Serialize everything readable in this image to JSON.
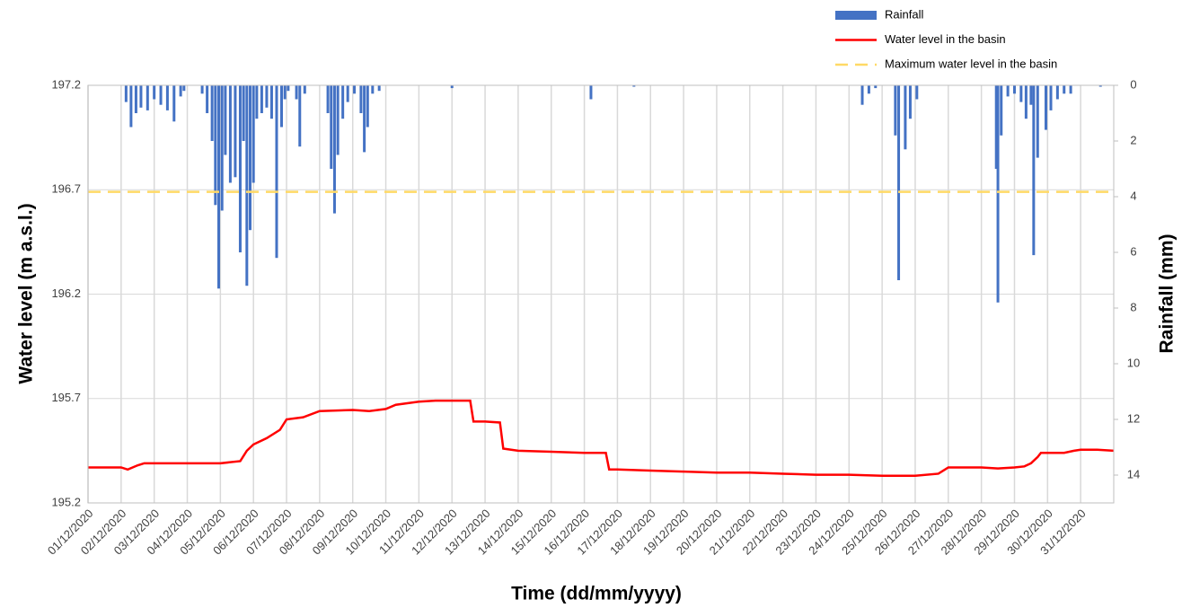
{
  "chart_data": {
    "type": "dual-axis",
    "x_label": "Time (dd/mm/yyyy)",
    "y_label": "Water level (m a.s.l.)",
    "y2_label": "Rainfall (mm)",
    "xlim": [
      0,
      31
    ],
    "xticks": [
      {
        "value": 0,
        "label": "01/12/2020"
      },
      {
        "value": 1,
        "label": "02/12/2020"
      },
      {
        "value": 2,
        "label": "03/12/2020"
      },
      {
        "value": 3,
        "label": "04/12/2020"
      },
      {
        "value": 4,
        "label": "05/12/2020"
      },
      {
        "value": 5,
        "label": "06/12/2020"
      },
      {
        "value": 6,
        "label": "07/12/2020"
      },
      {
        "value": 7,
        "label": "08/12/2020"
      },
      {
        "value": 8,
        "label": "09/12/2020"
      },
      {
        "value": 9,
        "label": "10/12/2020"
      },
      {
        "value": 10,
        "label": "11/12/2020"
      },
      {
        "value": 11,
        "label": "12/12/2020"
      },
      {
        "value": 12,
        "label": "13/12/2020"
      },
      {
        "value": 13,
        "label": "14/12/2020"
      },
      {
        "value": 14,
        "label": "15/12/2020"
      },
      {
        "value": 15,
        "label": "16/12/2020"
      },
      {
        "value": 16,
        "label": "17/12/2020"
      },
      {
        "value": 17,
        "label": "18/12/2020"
      },
      {
        "value": 18,
        "label": "19/12/2020"
      },
      {
        "value": 19,
        "label": "20/12/2020"
      },
      {
        "value": 20,
        "label": "21/12/2020"
      },
      {
        "value": 21,
        "label": "22/12/2020"
      },
      {
        "value": 22,
        "label": "23/12/2020"
      },
      {
        "value": 23,
        "label": "24/12/2020"
      },
      {
        "value": 24,
        "label": "25/12/2020"
      },
      {
        "value": 25,
        "label": "26/12/2020"
      },
      {
        "value": 26,
        "label": "27/12/2020"
      },
      {
        "value": 27,
        "label": "28/12/2020"
      },
      {
        "value": 28,
        "label": "29/12/2020"
      },
      {
        "value": 29,
        "label": "30/12/2020"
      },
      {
        "value": 30,
        "label": "31/12/2020"
      }
    ],
    "ylim": [
      195.2,
      197.2
    ],
    "yticks": [
      195.2,
      195.7,
      196.2,
      196.7,
      197.2
    ],
    "y2lim": [
      0,
      15
    ],
    "y2ticks": [
      0,
      2,
      4,
      6,
      8,
      10,
      12,
      14
    ],
    "y2_inverted": true,
    "grid": true,
    "legend": "top-right",
    "series": [
      {
        "name": "Rainfall",
        "type": "bar",
        "axis": "y2",
        "color": "#4472c4",
        "x": [
          1.15,
          1.3,
          1.45,
          1.6,
          1.8,
          2.0,
          2.2,
          2.4,
          2.6,
          2.8,
          2.9,
          3.45,
          3.6,
          3.75,
          3.85,
          3.95,
          4.05,
          4.15,
          4.3,
          4.45,
          4.6,
          4.7,
          4.8,
          4.9,
          5.0,
          5.1,
          5.25,
          5.4,
          5.55,
          5.7,
          5.85,
          5.95,
          6.05,
          6.3,
          6.4,
          6.55,
          7.25,
          7.35,
          7.45,
          7.55,
          7.7,
          7.85,
          8.05,
          8.25,
          8.35,
          8.45,
          8.6,
          8.8,
          11.0,
          15.2,
          16.5,
          23.4,
          23.6,
          23.8,
          24.4,
          24.5,
          24.7,
          24.85,
          25.05,
          27.45,
          27.5,
          27.6,
          27.8,
          28.0,
          28.2,
          28.35,
          28.5,
          28.58,
          28.7,
          28.95,
          29.1,
          29.3,
          29.5,
          29.7,
          30.6
        ],
        "values": [
          0.6,
          1.5,
          1.0,
          0.8,
          0.9,
          0.5,
          0.7,
          0.9,
          1.3,
          0.4,
          0.2,
          0.3,
          1.0,
          2.0,
          4.3,
          7.3,
          4.5,
          2.5,
          3.5,
          3.3,
          6.0,
          2.0,
          7.2,
          5.2,
          3.5,
          1.2,
          1.0,
          0.8,
          1.2,
          6.2,
          1.5,
          0.5,
          0.2,
          0.5,
          2.2,
          0.3,
          1.0,
          3.0,
          4.6,
          2.5,
          1.2,
          0.6,
          0.3,
          1.0,
          2.4,
          1.5,
          0.3,
          0.2,
          0.1,
          0.5,
          0.05,
          0.7,
          0.3,
          0.1,
          1.8,
          7.0,
          2.3,
          1.2,
          0.5,
          3.0,
          7.8,
          1.8,
          0.4,
          0.3,
          0.6,
          1.2,
          0.7,
          6.1,
          2.6,
          1.6,
          0.9,
          0.5,
          0.3,
          0.3,
          0.05
        ]
      },
      {
        "name": "Water level in the basin",
        "type": "line",
        "axis": "y",
        "color": "#ff0000",
        "x": [
          0,
          1,
          1.2,
          1.5,
          1.7,
          2,
          2.5,
          3,
          3.5,
          4,
          4.6,
          4.8,
          5,
          5.4,
          5.8,
          6,
          6.5,
          7,
          8,
          8.5,
          9,
          9.3,
          10,
          10.5,
          11,
          11.55,
          11.65,
          12,
          12.45,
          12.55,
          13,
          14,
          15,
          15.65,
          15.75,
          16,
          17,
          18,
          19,
          20,
          21,
          22,
          23,
          24,
          25,
          25.7,
          25.9,
          26,
          27,
          27.5,
          28,
          28.3,
          28.5,
          28.7,
          28.8,
          29,
          29.5,
          29.8,
          30,
          30.5,
          31
        ],
        "values": [
          195.37,
          195.37,
          195.36,
          195.38,
          195.39,
          195.39,
          195.39,
          195.39,
          195.39,
          195.39,
          195.4,
          195.45,
          195.48,
          195.51,
          195.55,
          195.6,
          195.61,
          195.64,
          195.645,
          195.64,
          195.65,
          195.67,
          195.685,
          195.69,
          195.69,
          195.69,
          195.59,
          195.59,
          195.585,
          195.46,
          195.45,
          195.445,
          195.44,
          195.44,
          195.36,
          195.36,
          195.355,
          195.35,
          195.345,
          195.345,
          195.34,
          195.335,
          195.335,
          195.33,
          195.33,
          195.34,
          195.36,
          195.37,
          195.37,
          195.365,
          195.37,
          195.375,
          195.39,
          195.42,
          195.44,
          195.44,
          195.44,
          195.45,
          195.455,
          195.455,
          195.45
        ]
      },
      {
        "name": "Maximum water level in the basin",
        "type": "hline",
        "axis": "y",
        "color": "#ffd966",
        "value": 196.69
      }
    ]
  }
}
